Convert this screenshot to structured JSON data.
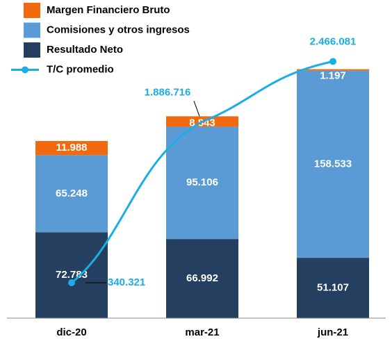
{
  "chart_data": {
    "type": "bar",
    "stacked": true,
    "categories": [
      "dic-20",
      "mar-21",
      "jun-21"
    ],
    "series": [
      {
        "name": "Margen Financiero Bruto",
        "color": "#f26a10",
        "values": [
          11988,
          8843,
          1197
        ],
        "value_labels": [
          "11.988",
          "8.843",
          "1.197"
        ]
      },
      {
        "name": "Comisiones y otros ingresos",
        "color": "#5b9bd5",
        "values": [
          65248,
          95106,
          158533
        ],
        "value_labels": [
          "65.248",
          "95.106",
          "158.533"
        ]
      },
      {
        "name": "Resultado Neto",
        "color": "#243f60",
        "values": [
          72783,
          66992,
          51107
        ],
        "value_labels": [
          "72.783",
          "66.992",
          "51.107"
        ]
      },
      {
        "name": "T/C promedio",
        "type": "line",
        "axis": "y2",
        "color": "#1aaee5",
        "values": [
          340321,
          1886716,
          2466081
        ],
        "value_labels": [
          "340.321",
          "1.886.716",
          "2.466.081"
        ]
      }
    ],
    "ylim": [
      0,
      260000
    ],
    "y2lim": [
      0,
      2950000
    ]
  }
}
